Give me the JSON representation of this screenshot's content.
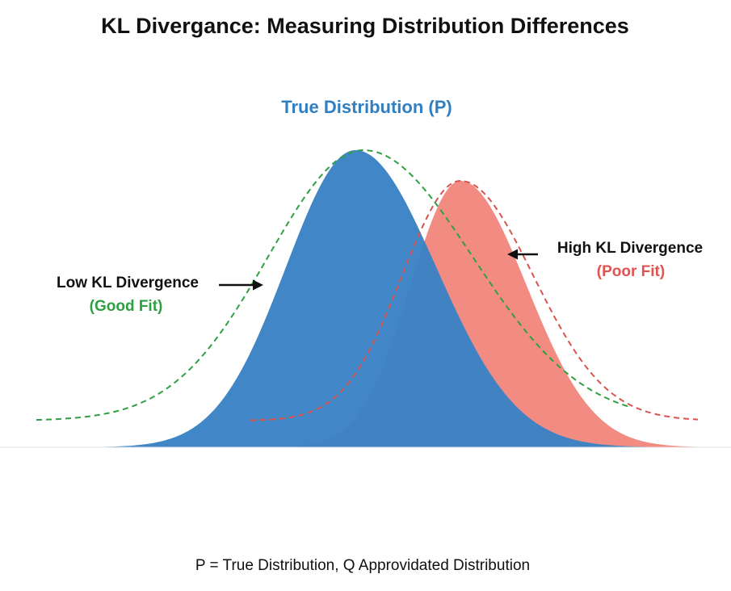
{
  "title": "KL Divergance: Measuring Distribution Differences",
  "true_label": "True Distribution (P)",
  "low_kl": {
    "label": "Low KL Divergence",
    "sublabel": "(Good Fit)"
  },
  "high_kl": {
    "label": "High KL Divergence",
    "sublabel": "(Poor Fit)"
  },
  "footnote": "P = True Distribution, Q  Approvidated Distribution",
  "colors": {
    "true_fill": "#3b82c4",
    "true_label": "#2f7fc1",
    "poor_fill": "#f28b82",
    "poor_dash": "#d9534f",
    "poor_text": "#e0534f",
    "good_dash": "#2ea043",
    "good_text": "#2ea043",
    "arrow": "#111111"
  },
  "icons": {
    "low_arrow": "arrow-right-icon",
    "high_arrow": "arrow-left-icon"
  }
}
